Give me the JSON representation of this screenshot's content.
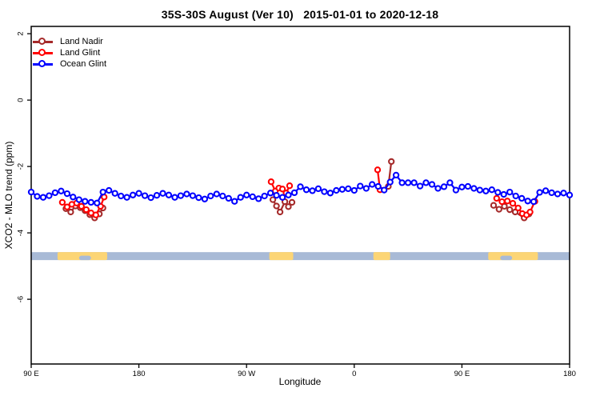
{
  "chart_data": {
    "type": "line",
    "title": "35S-30S August (Ver 10)   2015-01-01 to 2020-12-18",
    "xlabel": "Longitude",
    "ylabel": "XCO2 - MLO trend (ppm)",
    "grid": false,
    "legend_position": "top-left",
    "xlim": [
      90,
      540
    ],
    "ylim": [
      2.22,
      -7.95
    ],
    "x_axis": {
      "unit": "degrees of longitude, wrapping eastward from 90E to 180",
      "ticks": [
        {
          "pos": 90,
          "label": "90 E"
        },
        {
          "pos": 180,
          "label": "180"
        },
        {
          "pos": 270,
          "label": "90 W"
        },
        {
          "pos": 360,
          "label": "0"
        },
        {
          "pos": 450,
          "label": "90 E"
        },
        {
          "pos": 540,
          "label": "180"
        }
      ]
    },
    "y_axis": {
      "unit": "ppm",
      "ticks": [
        {
          "pos": 2,
          "label": "2"
        },
        {
          "pos": 0,
          "label": "0"
        },
        {
          "pos": -2,
          "label": "-2"
        },
        {
          "pos": -4,
          "label": "-4"
        },
        {
          "pos": -6,
          "label": "-6"
        }
      ]
    },
    "series": [
      {
        "name": "Land Nadir",
        "color": "#A52A2A",
        "marker": "open-circle",
        "segments": [
          [
            [
              119,
              -3.27
            ],
            [
              123,
              -3.37
            ],
            [
              127,
              -3.19
            ],
            [
              131,
              -3.24
            ],
            [
              135,
              -3.33
            ],
            [
              139,
              -3.45
            ],
            [
              143,
              -3.55
            ],
            [
              147,
              -3.43
            ],
            [
              150,
              -3.25
            ]
          ],
          [
            [
              292,
              -3.0
            ],
            [
              295,
              -3.19
            ],
            [
              298,
              -3.37
            ],
            [
              302,
              -3.06
            ],
            [
              305,
              -3.21
            ],
            [
              308,
              -3.08
            ]
          ],
          [
            [
              388.5,
              -2.6
            ],
            [
              391,
              -1.85
            ]
          ],
          [
            [
              476.5,
              -3.17
            ],
            [
              481,
              -3.29
            ],
            [
              485.5,
              -3.2
            ],
            [
              490,
              -3.3
            ],
            [
              494.5,
              -3.37
            ],
            [
              502,
              -3.55
            ],
            [
              506,
              -3.43
            ]
          ]
        ]
      },
      {
        "name": "Land Glint",
        "color": "#FF0000",
        "marker": "open-circle",
        "segments": [
          [
            [
              116,
              -3.08
            ],
            [
              120,
              -3.22
            ],
            [
              124,
              -3.14
            ],
            [
              128,
              -3.1
            ],
            [
              132,
              -3.2
            ],
            [
              136,
              -3.3
            ],
            [
              140,
              -3.4
            ],
            [
              144,
              -3.46
            ],
            [
              148,
              -3.2
            ],
            [
              151,
              -2.92
            ]
          ],
          [
            [
              290.5,
              -2.46
            ],
            [
              294,
              -2.74
            ],
            [
              297,
              -2.65
            ],
            [
              300,
              -2.68
            ],
            [
              303,
              -2.8
            ],
            [
              306,
              -2.58
            ]
          ],
          [
            [
              379.5,
              -2.1
            ],
            [
              381.5,
              -2.7
            ]
          ],
          [
            [
              479,
              -2.96
            ],
            [
              483.5,
              -3.06
            ],
            [
              488,
              -3.04
            ],
            [
              492.5,
              -3.11
            ],
            [
              497,
              -3.25
            ],
            [
              500.5,
              -3.42
            ],
            [
              504,
              -3.46
            ],
            [
              507,
              -3.37
            ],
            [
              511,
              -3.05
            ]
          ]
        ]
      },
      {
        "name": "Ocean Glint",
        "color": "#0000FF",
        "marker": "open-circle",
        "segments": [
          [
            [
              90,
              -2.77
            ],
            [
              95,
              -2.9
            ],
            [
              100,
              -2.93
            ],
            [
              105,
              -2.88
            ],
            [
              110,
              -2.79
            ],
            [
              115,
              -2.74
            ],
            [
              120,
              -2.82
            ],
            [
              125,
              -2.92
            ],
            [
              130,
              -3.0
            ],
            [
              135,
              -3.05
            ],
            [
              140,
              -3.08
            ],
            [
              145,
              -3.1
            ],
            [
              150,
              -2.77
            ],
            [
              155,
              -2.72
            ],
            [
              160,
              -2.81
            ],
            [
              165,
              -2.89
            ],
            [
              170,
              -2.93
            ],
            [
              175,
              -2.86
            ],
            [
              180,
              -2.81
            ],
            [
              185,
              -2.88
            ],
            [
              190,
              -2.94
            ],
            [
              195,
              -2.87
            ],
            [
              200,
              -2.81
            ],
            [
              205,
              -2.86
            ],
            [
              210,
              -2.93
            ],
            [
              215,
              -2.88
            ],
            [
              220,
              -2.83
            ],
            [
              225,
              -2.88
            ],
            [
              230,
              -2.94
            ],
            [
              235,
              -2.98
            ],
            [
              240,
              -2.89
            ],
            [
              245,
              -2.83
            ],
            [
              250,
              -2.89
            ],
            [
              255,
              -2.96
            ],
            [
              260,
              -3.05
            ],
            [
              265,
              -2.93
            ],
            [
              270,
              -2.86
            ],
            [
              275,
              -2.91
            ],
            [
              280,
              -2.97
            ],
            [
              285,
              -2.89
            ],
            [
              290,
              -2.8
            ],
            [
              295,
              -2.87
            ],
            [
              300,
              -2.93
            ],
            [
              305,
              -2.86
            ],
            [
              310,
              -2.79
            ],
            [
              315,
              -2.61
            ],
            [
              320,
              -2.7
            ],
            [
              325,
              -2.73
            ],
            [
              330,
              -2.67
            ],
            [
              335,
              -2.76
            ],
            [
              340,
              -2.8
            ],
            [
              345,
              -2.72
            ],
            [
              350,
              -2.69
            ],
            [
              355,
              -2.67
            ],
            [
              360,
              -2.72
            ],
            [
              365,
              -2.59
            ],
            [
              370,
              -2.66
            ],
            [
              375,
              -2.54
            ],
            [
              380,
              -2.6
            ],
            [
              385,
              -2.71
            ],
            [
              390,
              -2.47
            ],
            [
              395,
              -2.26
            ],
            [
              400,
              -2.49
            ],
            [
              405,
              -2.49
            ],
            [
              410,
              -2.49
            ],
            [
              415,
              -2.59
            ],
            [
              420,
              -2.49
            ],
            [
              425,
              -2.54
            ],
            [
              430,
              -2.66
            ],
            [
              435,
              -2.61
            ],
            [
              440,
              -2.49
            ],
            [
              445,
              -2.71
            ],
            [
              450,
              -2.62
            ],
            [
              455,
              -2.6
            ],
            [
              460,
              -2.66
            ],
            [
              465,
              -2.71
            ],
            [
              470,
              -2.74
            ],
            [
              475,
              -2.7
            ],
            [
              480,
              -2.78
            ],
            [
              485,
              -2.84
            ],
            [
              490,
              -2.77
            ],
            [
              495,
              -2.89
            ],
            [
              500,
              -2.96
            ],
            [
              505,
              -3.04
            ],
            [
              510,
              -3.06
            ],
            [
              515,
              -2.78
            ],
            [
              520,
              -2.73
            ],
            [
              525,
              -2.79
            ],
            [
              530,
              -2.83
            ],
            [
              535,
              -2.8
            ],
            [
              540,
              -2.86
            ]
          ]
        ]
      }
    ],
    "map_band": {
      "description": "land/ocean strip for latitude band 35S-30S",
      "ocean_color": "#A8BAD6",
      "land_color": "#FCD575",
      "y_range": [
        -4.58,
        -4.82
      ],
      "land_segments_deg": [
        [
          112,
          153.5
        ],
        [
          289,
          309
        ],
        [
          376,
          390
        ],
        [
          472,
          513.5
        ]
      ],
      "coast_notches_deg": [
        [
          130,
          140
        ],
        [
          482,
          492
        ]
      ]
    }
  }
}
